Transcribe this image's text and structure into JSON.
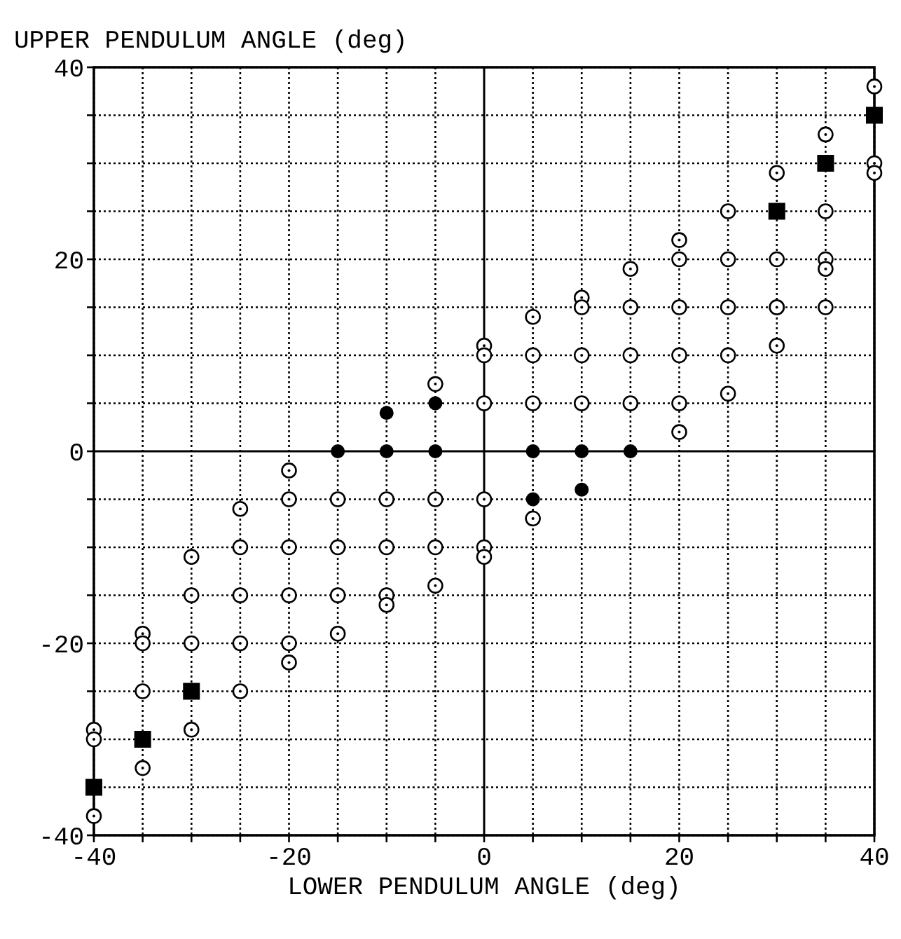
{
  "chart_data": {
    "type": "scatter",
    "xlabel": "LOWER PENDULUM ANGLE (deg)",
    "ylabel": "UPPER PENDULUM ANGLE (deg)",
    "xlim": [
      -40,
      40
    ],
    "ylim": [
      -40,
      40
    ],
    "xticks": [
      -40,
      {
        "value": -35,
        "label": null
      },
      {
        "value": -30,
        "label": null
      },
      {
        "value": -25,
        "label": null
      },
      -20,
      {
        "value": -15,
        "label": null
      },
      {
        "value": -10,
        "label": null
      },
      {
        "value": -5,
        "label": null
      },
      0,
      {
        "value": 5,
        "label": null
      },
      {
        "value": 10,
        "label": null
      },
      {
        "value": 15,
        "label": null
      },
      20,
      {
        "value": 25,
        "label": null
      },
      {
        "value": 30,
        "label": null
      },
      {
        "value": 35,
        "label": null
      },
      40
    ],
    "yticks": [
      -40,
      {
        "value": -35,
        "label": null
      },
      {
        "value": -30,
        "label": null
      },
      {
        "value": -25,
        "label": null
      },
      -20,
      {
        "value": -15,
        "label": null
      },
      {
        "value": -10,
        "label": null
      },
      {
        "value": -5,
        "label": null
      },
      0,
      {
        "value": 5,
        "label": null
      },
      {
        "value": 10,
        "label": null
      },
      {
        "value": 15,
        "label": null
      },
      20,
      {
        "value": 25,
        "label": null
      },
      {
        "value": 30,
        "label": null
      },
      {
        "value": 35,
        "label": null
      },
      40
    ],
    "grid": true,
    "series": [
      {
        "color": "#000000",
        "marker": "circle",
        "x": [
          -40,
          -40,
          -40,
          -35,
          -35,
          -35,
          -35,
          -30,
          -30,
          -30,
          -30,
          -25,
          -25,
          -25,
          -25,
          -25,
          -20,
          -20,
          -20,
          -20,
          -20,
          -20,
          -15,
          -15,
          -15,
          -15,
          -10,
          -10,
          -10,
          -10,
          -5,
          -5,
          -5,
          -5,
          0,
          0,
          0,
          0,
          0,
          0,
          5,
          5,
          5,
          5,
          10,
          10,
          10,
          10,
          15,
          15,
          15,
          15,
          20,
          20,
          20,
          20,
          20,
          20,
          25,
          25,
          25,
          25,
          25,
          30,
          30,
          30,
          30,
          30,
          35,
          35,
          35,
          35,
          35,
          40,
          40,
          40
        ],
        "values": [
          -29,
          -30,
          -38,
          -19,
          -20,
          -25,
          -33,
          -11,
          -15,
          -20,
          -29,
          -6,
          -10,
          -15,
          -20,
          -25,
          -2,
          -5,
          -10,
          -15,
          -20,
          -22,
          -5,
          -10,
          -15,
          -19,
          -5,
          -10,
          -15,
          -16,
          7,
          -5,
          -10,
          -14,
          11,
          10,
          5,
          -5,
          -10,
          -11,
          14,
          10,
          5,
          -7,
          16,
          15,
          10,
          5,
          19,
          15,
          10,
          5,
          22,
          20,
          15,
          10,
          5,
          2,
          25,
          20,
          15,
          10,
          6,
          29,
          20,
          15,
          11,
          15,
          33,
          25,
          20,
          19,
          15,
          38,
          30,
          29
        ]
      },
      {
        "color": "#000000",
        "marker": "circle",
        "x": [
          -15,
          -10,
          -5,
          -10,
          -5,
          5,
          10,
          15,
          5,
          10
        ],
        "values": [
          0,
          0,
          0,
          4,
          5,
          0,
          0,
          0,
          -5,
          -4
        ]
      },
      {
        "color": "#000000",
        "marker": "square",
        "x": [
          -40,
          -35,
          -30,
          30,
          35,
          40
        ],
        "values": [
          -35,
          -30,
          -25,
          25,
          30,
          35
        ]
      }
    ]
  }
}
